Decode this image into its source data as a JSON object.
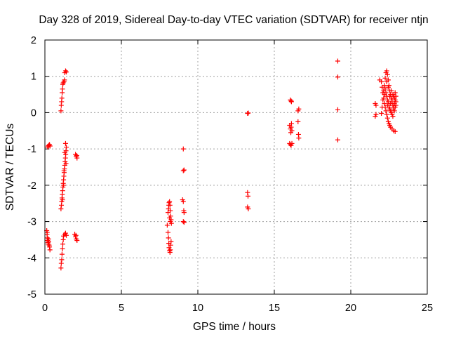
{
  "chart_data": {
    "type": "scatter",
    "title": "Day 328 of 2019, Sidereal Day-to-day VTEC variation (SDTVAR) for receiver ntjn",
    "xlabel": "GPS time / hours",
    "ylabel": "SDTVAR / TECUs",
    "xlim": [
      0,
      25
    ],
    "ylim": [
      -5,
      2
    ],
    "xticks": [
      0,
      5,
      10,
      15,
      20,
      25
    ],
    "yticks": [
      -5,
      -4,
      -3,
      -2,
      -1,
      0,
      1,
      2
    ],
    "grid": true,
    "marker": "plus",
    "color": "#ff0000",
    "series": [
      {
        "name": "SDTVAR",
        "points": [
          [
            0.18,
            -0.95
          ],
          [
            0.22,
            -0.92
          ],
          [
            0.26,
            -0.9
          ],
          [
            0.3,
            -0.88
          ],
          [
            0.34,
            -0.92
          ],
          [
            0.12,
            -3.25
          ],
          [
            0.14,
            -3.35
          ],
          [
            0.16,
            -3.45
          ],
          [
            0.18,
            -3.52
          ],
          [
            0.2,
            -3.58
          ],
          [
            0.22,
            -3.62
          ],
          [
            0.25,
            -3.55
          ],
          [
            0.28,
            -3.65
          ],
          [
            0.3,
            -3.7
          ],
          [
            0.33,
            -3.78
          ],
          [
            0.15,
            -3.3
          ],
          [
            0.24,
            -3.48
          ],
          [
            1.05,
            -4.28
          ],
          [
            1.07,
            -4.15
          ],
          [
            1.1,
            -4.05
          ],
          [
            1.12,
            -3.9
          ],
          [
            1.15,
            -3.75
          ],
          [
            1.17,
            -3.62
          ],
          [
            1.2,
            -3.5
          ],
          [
            1.22,
            -3.4
          ],
          [
            1.05,
            -2.65
          ],
          [
            1.08,
            -2.55
          ],
          [
            1.1,
            -2.45
          ],
          [
            1.12,
            -2.35
          ],
          [
            1.14,
            -2.25
          ],
          [
            1.16,
            -2.15
          ],
          [
            1.18,
            -2.05
          ],
          [
            1.2,
            -1.95
          ],
          [
            1.22,
            -1.85
          ],
          [
            1.24,
            -1.75
          ],
          [
            1.26,
            -1.65
          ],
          [
            1.28,
            -1.55
          ],
          [
            1.3,
            -1.45
          ],
          [
            1.32,
            -1.35
          ],
          [
            1.34,
            -1.25
          ],
          [
            1.36,
            -1.15
          ],
          [
            1.38,
            -1.05
          ],
          [
            1.4,
            -0.95
          ],
          [
            1.35,
            -0.85
          ],
          [
            1.3,
            -1.1
          ],
          [
            1.25,
            -1.6
          ],
          [
            1.38,
            -1.4
          ],
          [
            1.15,
            -2.4
          ],
          [
            1.22,
            -2.0
          ],
          [
            1.05,
            0.05
          ],
          [
            1.07,
            0.2
          ],
          [
            1.09,
            0.3
          ],
          [
            1.11,
            0.4
          ],
          [
            1.13,
            0.55
          ],
          [
            1.15,
            0.65
          ],
          [
            1.17,
            0.78
          ],
          [
            1.2,
            0.82
          ],
          [
            1.25,
            0.85
          ],
          [
            1.3,
            1.1
          ],
          [
            1.35,
            1.15
          ],
          [
            1.4,
            1.12
          ],
          [
            1.28,
            0.9
          ],
          [
            1.3,
            -3.35
          ],
          [
            1.35,
            -3.32
          ],
          [
            1.4,
            -3.38
          ],
          [
            2.0,
            -1.15
          ],
          [
            2.05,
            -1.2
          ],
          [
            2.1,
            -1.25
          ],
          [
            2.08,
            -1.18
          ],
          [
            1.95,
            -3.35
          ],
          [
            2.0,
            -3.42
          ],
          [
            2.05,
            -3.48
          ],
          [
            2.1,
            -3.52
          ],
          [
            2.03,
            -3.38
          ],
          [
            8.0,
            -3.1
          ],
          [
            8.05,
            -3.3
          ],
          [
            8.08,
            -3.45
          ],
          [
            8.1,
            -3.6
          ],
          [
            8.12,
            -3.72
          ],
          [
            8.15,
            -3.8
          ],
          [
            8.18,
            -3.85
          ],
          [
            8.2,
            -3.78
          ],
          [
            8.22,
            -3.65
          ],
          [
            8.25,
            -3.55
          ],
          [
            8.05,
            -2.75
          ],
          [
            8.08,
            -2.65
          ],
          [
            8.1,
            -2.55
          ],
          [
            8.12,
            -2.48
          ],
          [
            8.15,
            -2.45
          ],
          [
            8.18,
            -2.55
          ],
          [
            8.2,
            -2.7
          ],
          [
            8.22,
            -2.85
          ],
          [
            8.25,
            -2.95
          ],
          [
            8.27,
            -3.05
          ],
          [
            8.15,
            -2.9
          ],
          [
            8.2,
            -3.0
          ],
          [
            9.05,
            -1.0
          ],
          [
            9.05,
            -1.6
          ],
          [
            9.1,
            -1.58
          ],
          [
            9.0,
            -2.4
          ],
          [
            9.05,
            -2.45
          ],
          [
            9.08,
            -2.7
          ],
          [
            9.1,
            -2.75
          ],
          [
            9.05,
            -3.0
          ],
          [
            9.1,
            -3.02
          ],
          [
            13.25,
            -0.02
          ],
          [
            13.3,
            -0.01
          ],
          [
            13.25,
            -2.2
          ],
          [
            13.28,
            -2.3
          ],
          [
            13.25,
            -2.6
          ],
          [
            13.3,
            -2.65
          ],
          [
            16.05,
            0.35
          ],
          [
            16.1,
            0.32
          ],
          [
            16.12,
            0.3
          ],
          [
            16.0,
            -0.35
          ],
          [
            16.05,
            -0.45
          ],
          [
            16.08,
            -0.55
          ],
          [
            16.1,
            -0.4
          ],
          [
            16.12,
            -0.3
          ],
          [
            16.15,
            -0.5
          ],
          [
            16.0,
            -0.85
          ],
          [
            16.05,
            -0.88
          ],
          [
            16.1,
            -0.9
          ],
          [
            16.15,
            -0.85
          ],
          [
            16.55,
            0.05
          ],
          [
            16.6,
            0.1
          ],
          [
            16.55,
            -0.25
          ],
          [
            16.58,
            -0.6
          ],
          [
            16.6,
            -0.7
          ],
          [
            19.15,
            1.42
          ],
          [
            19.15,
            0.98
          ],
          [
            19.15,
            0.08
          ],
          [
            19.15,
            -0.75
          ],
          [
            21.6,
            0.25
          ],
          [
            21.65,
            0.2
          ],
          [
            21.6,
            -0.1
          ],
          [
            21.65,
            -0.05
          ],
          [
            21.9,
            0.9
          ],
          [
            22.0,
            0.85
          ],
          [
            22.05,
            0.7
          ],
          [
            22.1,
            0.55
          ],
          [
            22.15,
            0.4
          ],
          [
            22.2,
            0.25
          ],
          [
            22.25,
            0.15
          ],
          [
            22.3,
            0.05
          ],
          [
            22.35,
            -0.05
          ],
          [
            22.4,
            -0.15
          ],
          [
            22.45,
            -0.25
          ],
          [
            22.5,
            -0.3
          ],
          [
            22.55,
            -0.35
          ],
          [
            22.6,
            -0.4
          ],
          [
            22.7,
            -0.45
          ],
          [
            22.8,
            -0.5
          ],
          [
            22.9,
            -0.52
          ],
          [
            22.0,
            -0.02
          ],
          [
            22.05,
            0.15
          ],
          [
            22.1,
            0.35
          ],
          [
            22.15,
            0.6
          ],
          [
            22.2,
            0.75
          ],
          [
            22.25,
            0.95
          ],
          [
            22.3,
            1.1
          ],
          [
            22.35,
            1.15
          ],
          [
            22.4,
            1.05
          ],
          [
            22.45,
            0.9
          ],
          [
            22.5,
            0.75
          ],
          [
            22.55,
            0.6
          ],
          [
            22.6,
            0.5
          ],
          [
            22.65,
            0.4
          ],
          [
            22.7,
            0.3
          ],
          [
            22.75,
            0.2
          ],
          [
            22.8,
            0.15
          ],
          [
            22.85,
            0.25
          ],
          [
            22.9,
            0.35
          ],
          [
            22.95,
            0.45
          ],
          [
            22.3,
            0.55
          ],
          [
            22.35,
            0.45
          ],
          [
            22.4,
            0.35
          ],
          [
            22.45,
            0.3
          ],
          [
            22.5,
            0.2
          ],
          [
            22.55,
            0.1
          ],
          [
            22.6,
            0.05
          ],
          [
            22.65,
            0.0
          ],
          [
            22.7,
            -0.05
          ],
          [
            22.75,
            -0.1
          ],
          [
            22.8,
            0.1
          ],
          [
            22.85,
            0.05
          ],
          [
            22.9,
            0.15
          ],
          [
            22.95,
            0.2
          ],
          [
            22.2,
            0.5
          ],
          [
            22.25,
            0.65
          ],
          [
            22.35,
            0.85
          ],
          [
            22.45,
            0.7
          ],
          [
            22.55,
            0.45
          ],
          [
            22.65,
            0.6
          ],
          [
            22.75,
            0.5
          ],
          [
            22.85,
            0.4
          ],
          [
            22.95,
            0.3
          ],
          [
            22.4,
            0.2
          ],
          [
            22.5,
            0.15
          ],
          [
            22.6,
            0.25
          ],
          [
            22.7,
            0.35
          ],
          [
            22.8,
            0.45
          ],
          [
            22.9,
            0.55
          ]
        ]
      }
    ]
  }
}
